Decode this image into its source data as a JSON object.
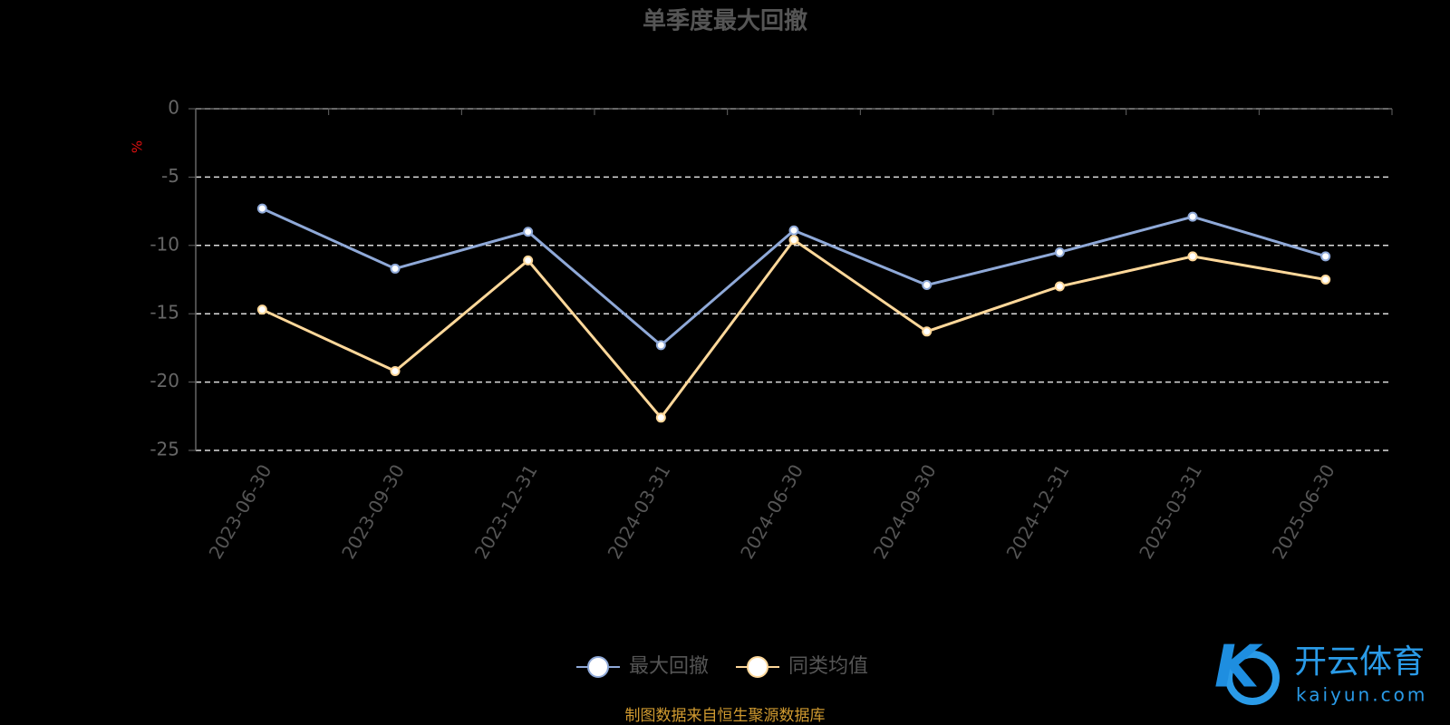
{
  "chart_data": {
    "type": "line",
    "title": "单季度最大回撤",
    "y_label": "%",
    "categories": [
      "2023-06-30",
      "2023-09-30",
      "2023-12-31",
      "2024-03-31",
      "2024-06-30",
      "2024-09-30",
      "2024-12-31",
      "2025-03-31",
      "2025-06-30"
    ],
    "series": [
      {
        "name": "最大回撤",
        "color": "#8fa9d8",
        "values": [
          -7.3,
          -11.7,
          -9.0,
          -17.3,
          -8.9,
          -12.9,
          -10.5,
          -7.9,
          -10.8
        ]
      },
      {
        "name": "同类均值",
        "color": "#ffd89a",
        "values": [
          -14.7,
          -19.2,
          -11.1,
          -22.6,
          -9.6,
          -16.3,
          -13.0,
          -10.8,
          -12.5
        ]
      }
    ],
    "ylim": [
      -25,
      0
    ],
    "yticks": [
      0,
      -5,
      -10,
      -15,
      -20,
      -25
    ],
    "grid": true,
    "source": "制图数据来自恒生聚源数据库"
  },
  "watermark": {
    "brand": "开云体育",
    "site": "kaiyun.com"
  }
}
